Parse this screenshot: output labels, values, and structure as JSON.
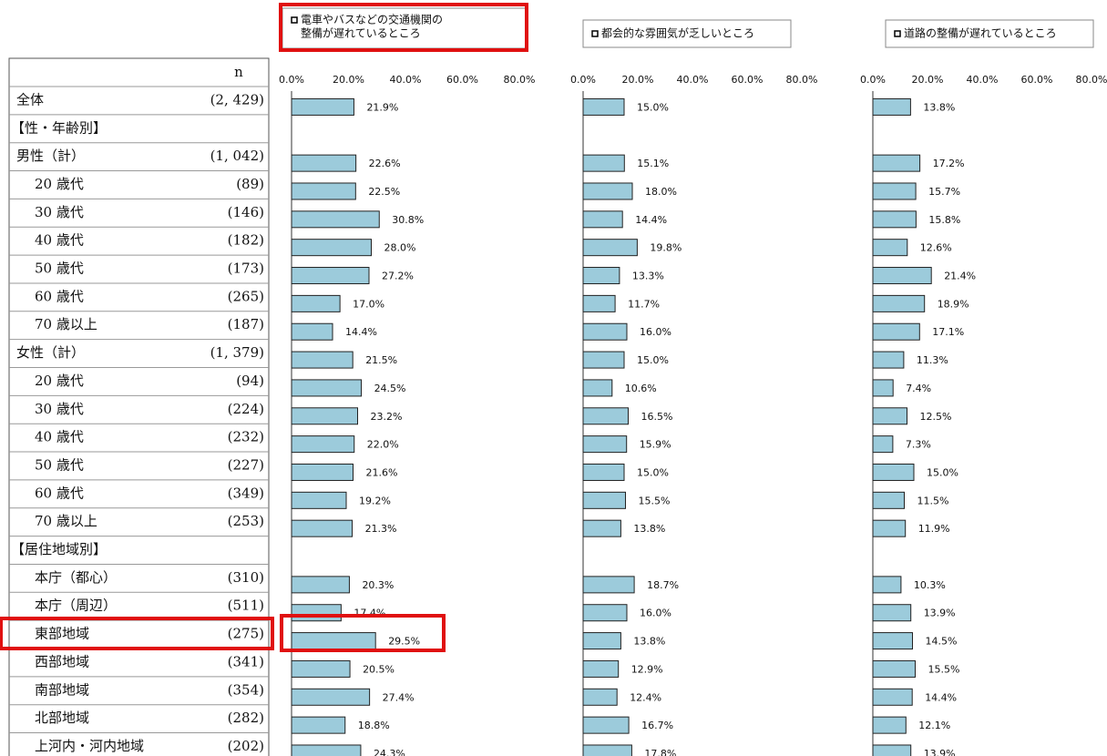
{
  "table": {
    "header_n": "n",
    "rows": [
      {
        "label": "全体",
        "n": "(2, 429)"
      },
      {
        "label": "【性・年齢別】",
        "n": null
      },
      {
        "label": "男性（計）",
        "n": "(1, 042)"
      },
      {
        "label": "20 歳代",
        "n": "(89)"
      },
      {
        "label": "30 歳代",
        "n": "(146)"
      },
      {
        "label": "40 歳代",
        "n": "(182)"
      },
      {
        "label": "50 歳代",
        "n": "(173)"
      },
      {
        "label": "60 歳代",
        "n": "(265)"
      },
      {
        "label": "70 歳以上",
        "n": "(187)"
      },
      {
        "label": "女性（計）",
        "n": "(1, 379)"
      },
      {
        "label": "20 歳代",
        "n": "(94)"
      },
      {
        "label": "30 歳代",
        "n": "(224)"
      },
      {
        "label": "40 歳代",
        "n": "(232)"
      },
      {
        "label": "50 歳代",
        "n": "(227)"
      },
      {
        "label": "60 歳代",
        "n": "(349)"
      },
      {
        "label": "70 歳以上",
        "n": "(253)"
      },
      {
        "label": "【居住地域別】",
        "n": null
      },
      {
        "label": "本庁（都心）",
        "n": "(310)"
      },
      {
        "label": "本庁（周辺）",
        "n": "(511)"
      },
      {
        "label": "東部地域",
        "n": "(275)"
      },
      {
        "label": "西部地域",
        "n": "(341)"
      },
      {
        "label": "南部地域",
        "n": "(354)"
      },
      {
        "label": "北部地域",
        "n": "(282)"
      },
      {
        "label": "上河内・河内地域",
        "n": "(202)"
      }
    ]
  },
  "chart_data": [
    {
      "type": "barh",
      "title": [
        "電車やバスなどの交通機関の",
        "整備が遅れているところ"
      ],
      "color": "#9ccbdb",
      "xlim": [
        0,
        80
      ],
      "xticks": [
        {
          "value": 0,
          "label": "0.0%"
        },
        {
          "value": 20,
          "label": "20.0%"
        },
        {
          "value": 40,
          "label": "40.0%"
        },
        {
          "value": 60,
          "label": "60.0%"
        },
        {
          "value": 80,
          "label": "80.0%"
        }
      ],
      "values": [
        21.9,
        null,
        22.6,
        22.5,
        30.8,
        28.0,
        27.2,
        17.0,
        14.4,
        21.5,
        24.5,
        23.2,
        22.0,
        21.6,
        19.2,
        21.3,
        null,
        20.3,
        17.4,
        29.5,
        20.5,
        27.4,
        18.8,
        24.3
      ],
      "value_labels": [
        "21.9%",
        null,
        "22.6%",
        "22.5%",
        "30.8%",
        "28.0%",
        "27.2%",
        "17.0%",
        "14.4%",
        "21.5%",
        "24.5%",
        "23.2%",
        "22.0%",
        "21.6%",
        "19.2%",
        "21.3%",
        null,
        "20.3%",
        "17.4%",
        "29.5%",
        "20.5%",
        "27.4%",
        "18.8%",
        "24.3%"
      ]
    },
    {
      "type": "barh",
      "title": [
        "都会的な雰囲気が乏しいところ"
      ],
      "color": "#9ccbdb",
      "xlim": [
        0,
        80
      ],
      "xticks": [
        {
          "value": 0,
          "label": "0.0%"
        },
        {
          "value": 20,
          "label": "20.0%"
        },
        {
          "value": 40,
          "label": "40.0%"
        },
        {
          "value": 60,
          "label": "60.0%"
        },
        {
          "value": 80,
          "label": "80.0%"
        }
      ],
      "values": [
        15.0,
        null,
        15.1,
        18.0,
        14.4,
        19.8,
        13.3,
        11.7,
        16.0,
        15.0,
        10.6,
        16.5,
        15.9,
        15.0,
        15.5,
        13.8,
        null,
        18.7,
        16.0,
        13.8,
        12.9,
        12.4,
        16.7,
        17.8
      ],
      "value_labels": [
        "15.0%",
        null,
        "15.1%",
        "18.0%",
        "14.4%",
        "19.8%",
        "13.3%",
        "11.7%",
        "16.0%",
        "15.0%",
        "10.6%",
        "16.5%",
        "15.9%",
        "15.0%",
        "15.5%",
        "13.8%",
        null,
        "18.7%",
        "16.0%",
        "13.8%",
        "12.9%",
        "12.4%",
        "16.7%",
        "17.8%"
      ]
    },
    {
      "type": "barh",
      "title": [
        "道路の整備が遅れているところ"
      ],
      "color": "#9ccbdb",
      "xlim": [
        0,
        80
      ],
      "xticks": [
        {
          "value": 0,
          "label": "0.0%"
        },
        {
          "value": 20,
          "label": "20.0%"
        },
        {
          "value": 40,
          "label": "40.0%"
        },
        {
          "value": 60,
          "label": "60.0%"
        },
        {
          "value": 80,
          "label": "80.0%"
        }
      ],
      "values": [
        13.8,
        null,
        17.2,
        15.7,
        15.8,
        12.6,
        21.4,
        18.9,
        17.1,
        11.3,
        7.4,
        12.5,
        7.3,
        15.0,
        11.5,
        11.9,
        null,
        10.3,
        13.9,
        14.5,
        15.5,
        14.4,
        12.1,
        13.9
      ],
      "value_labels": [
        "13.8%",
        null,
        "17.2%",
        "15.7%",
        "15.8%",
        "12.6%",
        "21.4%",
        "18.9%",
        "17.1%",
        "11.3%",
        "7.4%",
        "12.5%",
        "7.3%",
        "15.0%",
        "11.5%",
        "11.9%",
        null,
        "10.3%",
        "13.9%",
        "14.5%",
        "15.5%",
        "14.4%",
        "12.1%",
        "13.9%"
      ]
    }
  ]
}
